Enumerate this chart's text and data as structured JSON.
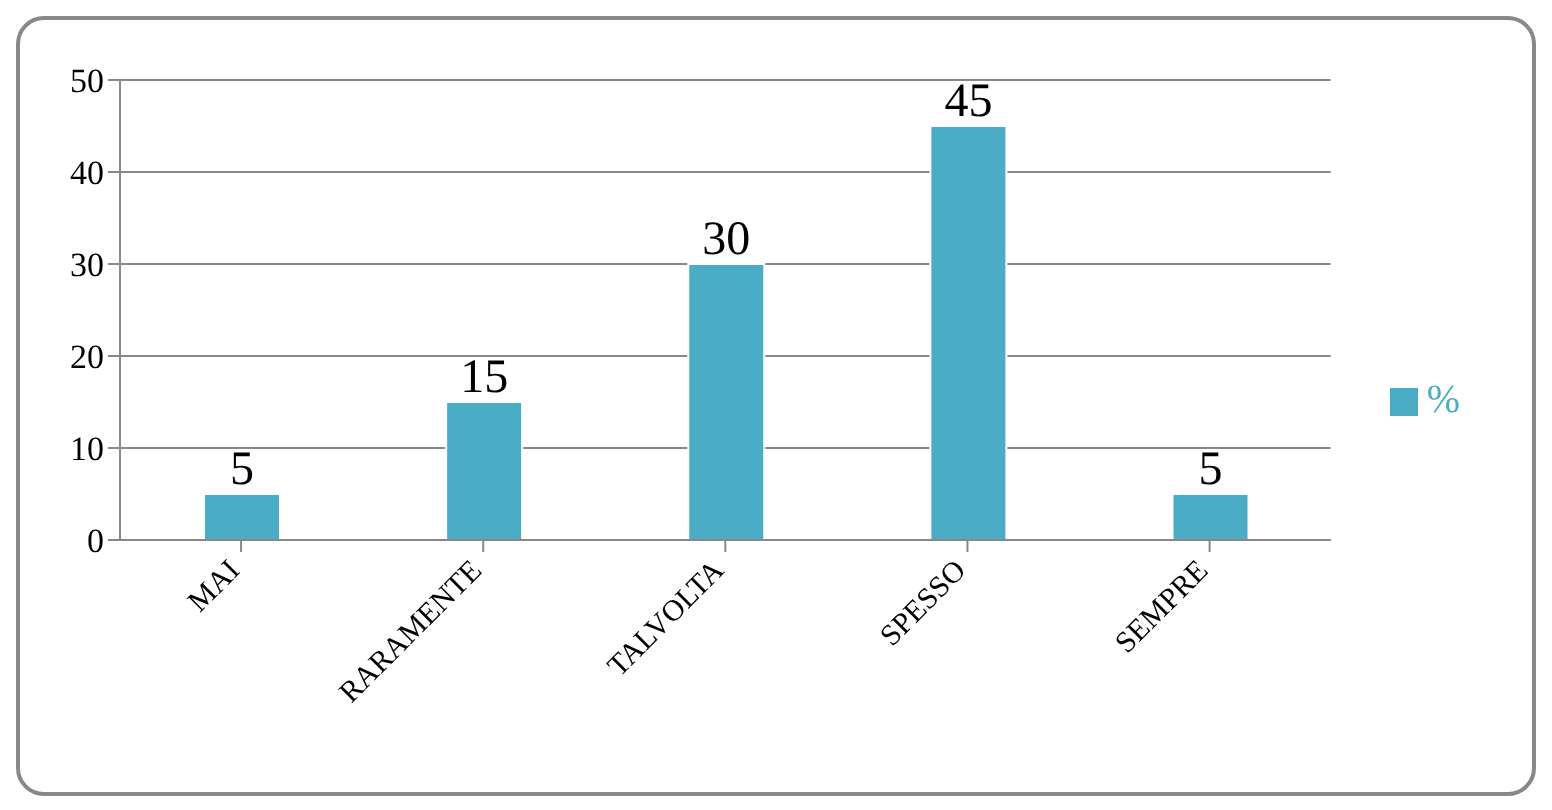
{
  "chart_data": {
    "type": "bar",
    "categories": [
      "MAI",
      "RARAMENTE",
      "TALVOLTA",
      "SPESSO",
      "SEMPRE"
    ],
    "series": [
      {
        "name": "%",
        "color": "#4bacc6",
        "values": [
          5,
          15,
          30,
          45,
          5
        ]
      }
    ],
    "ylim": [
      0,
      50
    ],
    "yticks": [
      0,
      10,
      20,
      30,
      40,
      50
    ],
    "grid": "y",
    "legend": "right",
    "data_labels": true
  }
}
